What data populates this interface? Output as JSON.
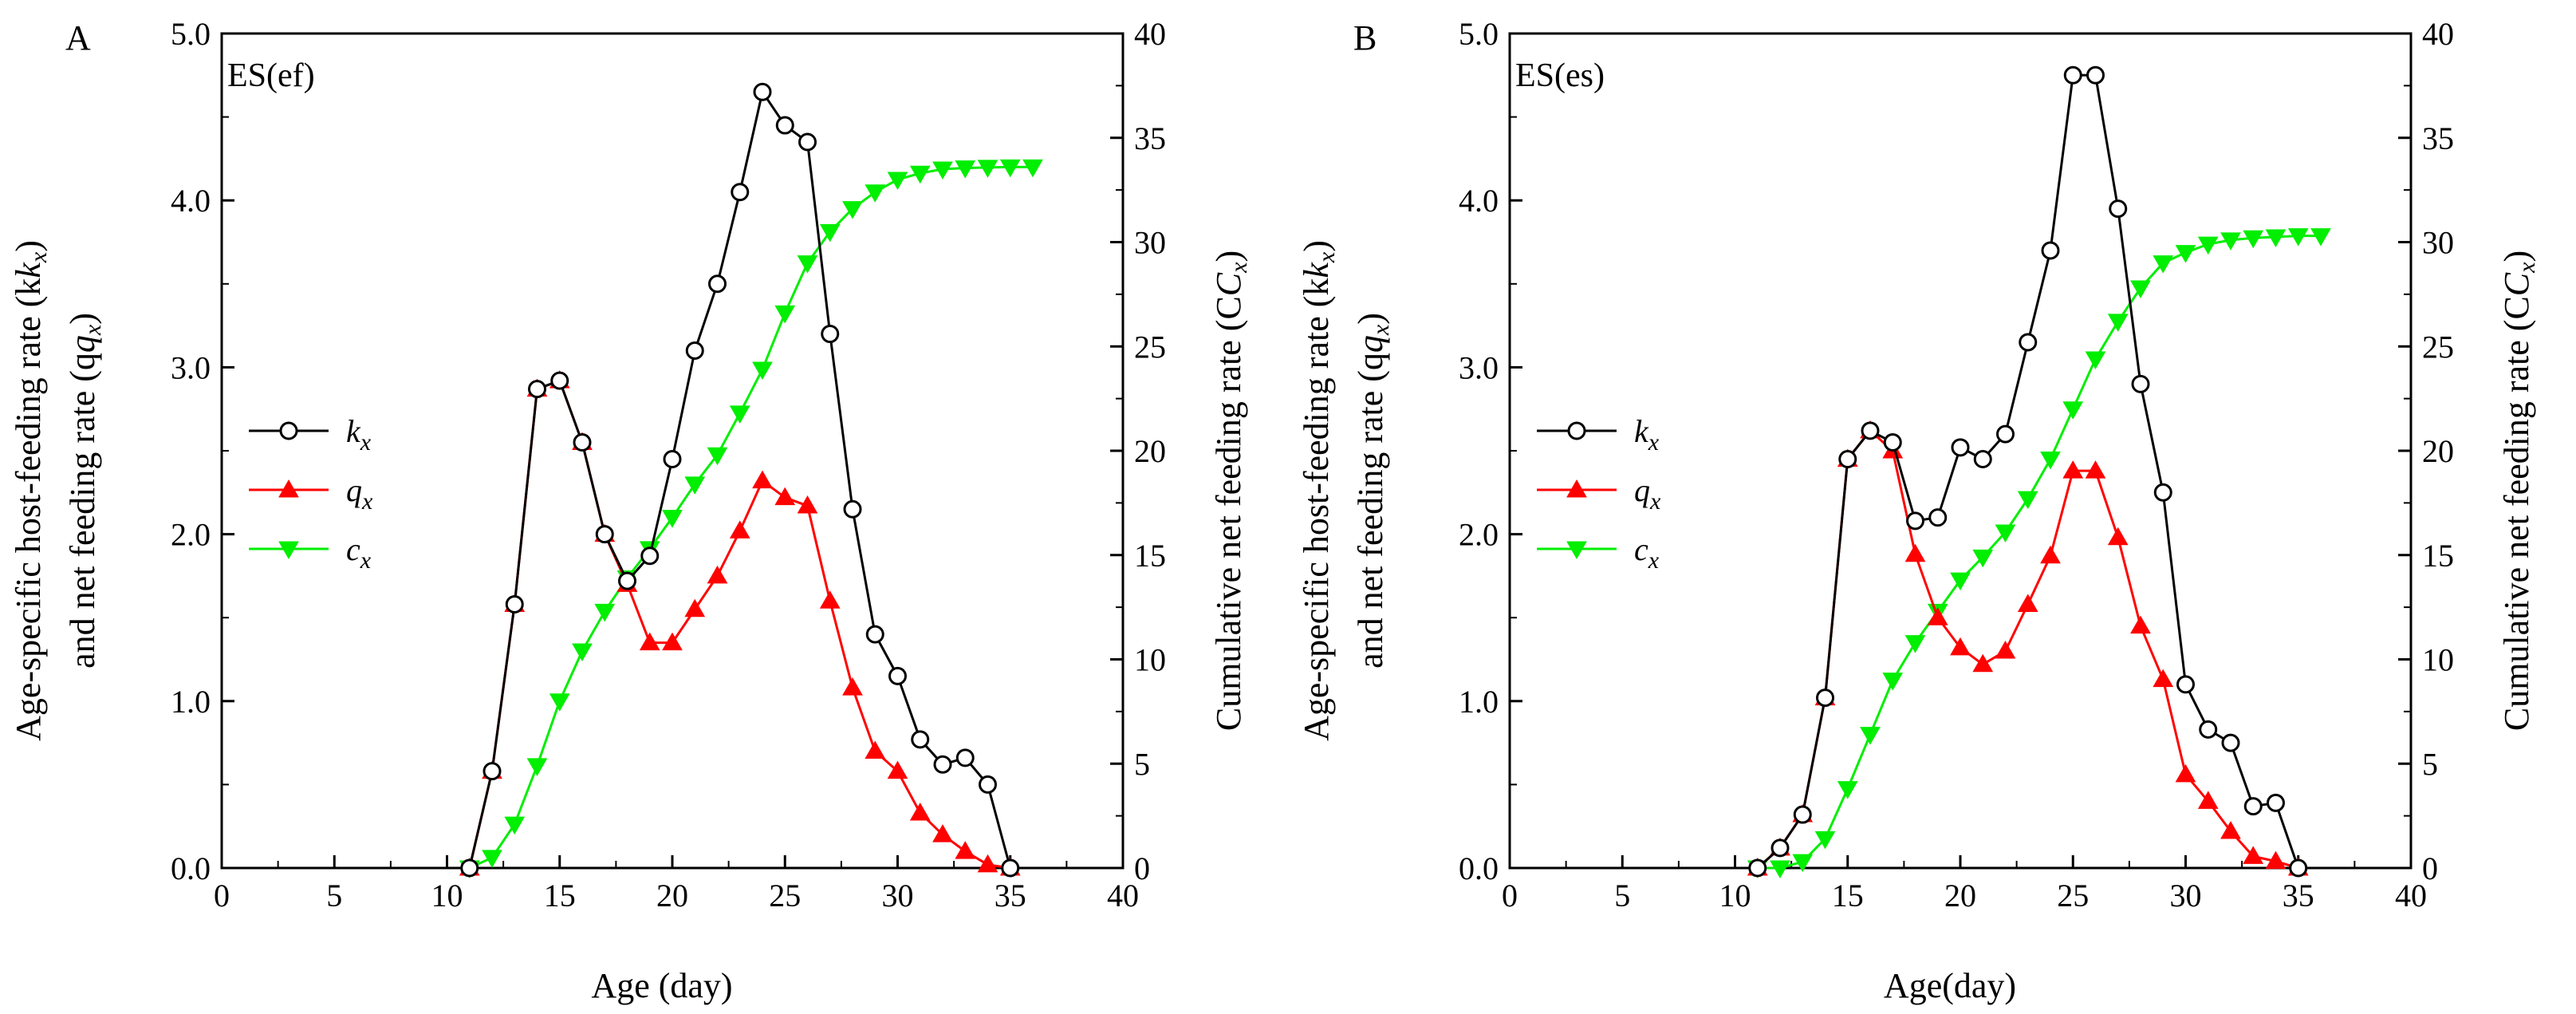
{
  "chart_data": [
    {
      "type": "line",
      "panel": "A",
      "tag": "ES(ef)",
      "xlabel": "Age (day)",
      "ylabel_left_line1": "Age-specific host-feeding rate (k",
      "ylabel_left_line2": "and net feeding rate (q",
      "ylabel_right": "Cumulative net feeding rate (C",
      "xlim": [
        0,
        40
      ],
      "ylim_left": [
        0,
        5
      ],
      "ylim_right": [
        0,
        40
      ],
      "x_ticks": [
        "0",
        "5",
        "10",
        "15",
        "20",
        "25",
        "30",
        "35",
        "40"
      ],
      "y_left_ticks": [
        "0.0",
        "1.0",
        "2.0",
        "3.0",
        "4.0",
        "5.0"
      ],
      "y_right_ticks": [
        "0",
        "5",
        "10",
        "15",
        "20",
        "25",
        "30",
        "35",
        "40"
      ],
      "legend": [
        {
          "key": "kx",
          "base": "k",
          "sub": "x",
          "color": "#000000",
          "marker": "circle"
        },
        {
          "key": "qx",
          "base": "q",
          "sub": "x",
          "color": "#ff0000",
          "marker": "triangle-up"
        },
        {
          "key": "cx",
          "base": "c",
          "sub": "x",
          "color": "#00ee00",
          "marker": "triangle-down"
        }
      ],
      "series": {
        "kx": {
          "x": [
            11,
            12,
            13,
            14,
            15,
            16,
            17,
            18,
            19,
            20,
            21,
            22,
            23,
            24,
            25,
            26,
            27,
            28,
            29,
            30,
            31,
            32,
            33,
            34,
            35
          ],
          "y": [
            0,
            0.58,
            1.58,
            2.87,
            2.92,
            2.55,
            2.0,
            1.72,
            1.87,
            2.45,
            3.1,
            3.5,
            4.05,
            4.65,
            4.45,
            4.35,
            3.2,
            2.15,
            1.4,
            1.15,
            0.77,
            0.62,
            0.66,
            0.5,
            0
          ]
        },
        "qx": {
          "x": [
            11,
            12,
            13,
            14,
            15,
            16,
            17,
            18,
            19,
            20,
            21,
            22,
            23,
            24,
            25,
            26,
            27,
            28,
            29,
            30,
            31,
            32,
            33,
            34,
            35
          ],
          "y": [
            0,
            0.58,
            1.58,
            2.87,
            2.92,
            2.55,
            2.0,
            1.7,
            1.35,
            1.35,
            1.55,
            1.75,
            2.02,
            2.32,
            2.22,
            2.17,
            1.6,
            1.08,
            0.7,
            0.58,
            0.33,
            0.2,
            0.1,
            0.02,
            0
          ]
        },
        "cx": {
          "x": [
            11,
            12,
            13,
            14,
            15,
            16,
            17,
            18,
            19,
            20,
            21,
            22,
            23,
            24,
            25,
            26,
            27,
            28,
            29,
            30,
            31,
            32,
            33,
            34,
            35,
            36
          ],
          "y": [
            0,
            0.5,
            2.1,
            4.9,
            8.0,
            10.4,
            12.3,
            13.9,
            15.3,
            16.8,
            18.4,
            19.8,
            21.8,
            23.9,
            26.6,
            29.0,
            30.5,
            31.6,
            32.4,
            33.0,
            33.3,
            33.5,
            33.55,
            33.58,
            33.6,
            33.6
          ]
        }
      }
    },
    {
      "type": "line",
      "panel": "B",
      "tag": "ES(es)",
      "xlabel": "Age(day)",
      "ylabel_left_line1": "Age-specific host-feeding rate (k",
      "ylabel_left_line2": "and net feeding rate (q",
      "ylabel_right": "Cumulative net feeding rate (C",
      "xlim": [
        0,
        40
      ],
      "ylim_left": [
        0,
        5
      ],
      "ylim_right": [
        0,
        40
      ],
      "x_ticks": [
        "0",
        "5",
        "10",
        "15",
        "20",
        "25",
        "30",
        "35",
        "40"
      ],
      "y_left_ticks": [
        "0.0",
        "1.0",
        "2.0",
        "3.0",
        "4.0",
        "5.0"
      ],
      "y_right_ticks": [
        "0",
        "5",
        "10",
        "15",
        "20",
        "25",
        "30",
        "35",
        "40"
      ],
      "legend": [
        {
          "key": "kx",
          "base": "k",
          "sub": "x",
          "color": "#000000",
          "marker": "circle"
        },
        {
          "key": "qx",
          "base": "q",
          "sub": "x",
          "color": "#ff0000",
          "marker": "triangle-up"
        },
        {
          "key": "cx",
          "base": "c",
          "sub": "x",
          "color": "#00ee00",
          "marker": "triangle-down"
        }
      ],
      "series": {
        "kx": {
          "x": [
            11,
            12,
            13,
            14,
            15,
            16,
            17,
            18,
            19,
            20,
            21,
            22,
            23,
            24,
            25,
            26,
            27,
            28,
            29,
            30,
            31,
            32,
            33,
            34,
            35
          ],
          "y": [
            0,
            0.12,
            0.32,
            1.02,
            2.45,
            2.62,
            2.55,
            2.08,
            2.1,
            2.52,
            2.45,
            2.6,
            3.15,
            3.7,
            4.75,
            4.75,
            3.95,
            2.9,
            2.25,
            1.1,
            0.83,
            0.75,
            0.37,
            0.39,
            0
          ]
        },
        "qx": {
          "x": [
            11,
            12,
            13,
            14,
            15,
            16,
            17,
            18,
            19,
            20,
            21,
            22,
            23,
            24,
            25,
            26,
            27,
            28,
            29,
            30,
            31,
            32,
            33,
            34,
            35
          ],
          "y": [
            0,
            0.12,
            0.32,
            1.02,
            2.45,
            2.62,
            2.5,
            1.88,
            1.5,
            1.32,
            1.22,
            1.3,
            1.58,
            1.87,
            2.38,
            2.38,
            1.98,
            1.45,
            1.13,
            0.56,
            0.4,
            0.22,
            0.07,
            0.04,
            0
          ]
        },
        "cx": {
          "x": [
            11,
            12,
            13,
            14,
            15,
            16,
            17,
            18,
            19,
            20,
            21,
            22,
            23,
            24,
            25,
            26,
            27,
            28,
            29,
            30,
            31,
            32,
            33,
            34,
            35,
            36
          ],
          "y": [
            0,
            0,
            0.3,
            1.4,
            3.8,
            6.4,
            9.0,
            10.8,
            12.3,
            13.8,
            14.9,
            16.1,
            17.7,
            19.6,
            22.0,
            24.4,
            26.2,
            27.8,
            29.0,
            29.5,
            29.9,
            30.1,
            30.2,
            30.25,
            30.3,
            30.3
          ]
        }
      }
    }
  ]
}
